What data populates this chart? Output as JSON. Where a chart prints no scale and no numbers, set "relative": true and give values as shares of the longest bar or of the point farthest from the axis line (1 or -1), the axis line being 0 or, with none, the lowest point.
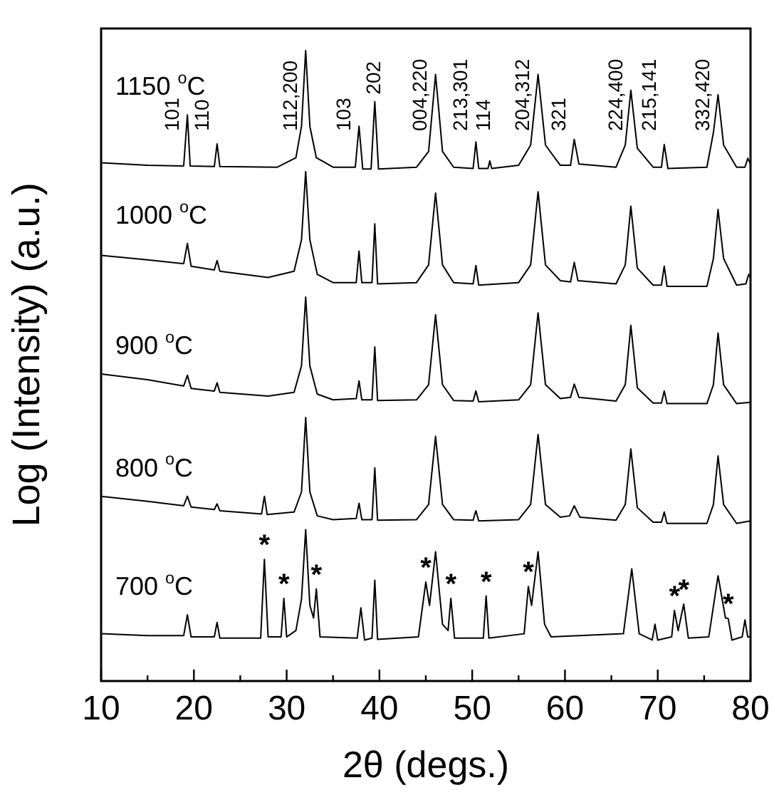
{
  "chart_data": {
    "type": "line",
    "relative": true,
    "xlabel": "2θ (degs.)",
    "ylabel": "Log (Intensity) (a.u.)",
    "xlim": [
      10,
      80
    ],
    "xticks": [
      10,
      {
        "value": 15,
        "label": null
      },
      20,
      {
        "value": 25,
        "label": null
      },
      30,
      {
        "value": 35,
        "label": null
      },
      40,
      {
        "value": 45,
        "label": null
      },
      50,
      {
        "value": 55,
        "label": null
      },
      60,
      {
        "value": 65,
        "label": null
      },
      70,
      {
        "value": 75,
        "label": null
      },
      80
    ],
    "grid": false,
    "legend": false,
    "marker": "none",
    "line_style": "solid",
    "series": [
      {
        "name": "1150 $^{o}$C",
        "color": "#000000",
        "x": [
          10,
          15,
          18.9,
          19.3,
          19.6,
          22.2,
          22.5,
          22.8,
          29,
          31,
          31.6,
          32.05,
          32.5,
          33.2,
          35,
          37.4,
          37.8,
          38.2,
          39.1,
          39.5,
          39.9,
          44,
          45.3,
          46.05,
          46.8,
          48,
          50.1,
          50.4,
          50.7,
          51.7,
          51.9,
          52.1,
          55,
          56.3,
          57.1,
          57.9,
          59.5,
          60.6,
          61.0,
          61.5,
          65.5,
          66.5,
          67.1,
          67.8,
          69.5,
          70.4,
          70.7,
          71.1,
          75.3,
          76.0,
          76.5,
          77.1,
          78.5,
          79.4,
          79.7,
          80
        ],
        "values": [
          0.822,
          0.818,
          0.817,
          0.898,
          0.817,
          0.816,
          0.852,
          0.816,
          0.815,
          0.83,
          0.88,
          1.0,
          0.88,
          0.83,
          0.815,
          0.815,
          0.88,
          0.812,
          0.812,
          0.919,
          0.812,
          0.815,
          0.84,
          0.962,
          0.84,
          0.815,
          0.813,
          0.855,
          0.813,
          0.813,
          0.825,
          0.813,
          0.818,
          0.85,
          0.962,
          0.85,
          0.818,
          0.818,
          0.859,
          0.82,
          0.815,
          0.85,
          0.937,
          0.845,
          0.815,
          0.815,
          0.851,
          0.813,
          0.815,
          0.87,
          0.93,
          0.85,
          0.815,
          0.815,
          0.829,
          0.82
        ]
      },
      {
        "name": "1000 $^{o}$C",
        "color": "#000000",
        "x": [
          10,
          15,
          18.9,
          19.3,
          19.7,
          22.2,
          22.5,
          22.8,
          28,
          30.8,
          31.6,
          32.05,
          32.5,
          33.3,
          35,
          37.5,
          37.8,
          38.1,
          39.2,
          39.5,
          39.8,
          44,
          45.3,
          46.05,
          46.8,
          48,
          50.1,
          50.4,
          50.7,
          55,
          56.3,
          57.1,
          57.9,
          59.5,
          60.6,
          61.0,
          61.4,
          65.5,
          66.5,
          67.1,
          67.8,
          69.5,
          70.4,
          70.7,
          71.0,
          75.3,
          76.0,
          76.5,
          77.1,
          78.5,
          79.5,
          79.8,
          80
        ],
        "values": [
          0.675,
          0.668,
          0.662,
          0.694,
          0.658,
          0.652,
          0.667,
          0.65,
          0.64,
          0.65,
          0.7,
          0.808,
          0.7,
          0.645,
          0.632,
          0.632,
          0.682,
          0.632,
          0.632,
          0.725,
          0.63,
          0.632,
          0.66,
          0.774,
          0.66,
          0.632,
          0.63,
          0.659,
          0.628,
          0.632,
          0.66,
          0.776,
          0.66,
          0.635,
          0.633,
          0.664,
          0.635,
          0.63,
          0.66,
          0.753,
          0.655,
          0.628,
          0.628,
          0.658,
          0.626,
          0.626,
          0.67,
          0.748,
          0.67,
          0.628,
          0.63,
          0.645,
          0.64
        ]
      },
      {
        "name": "900 $^{o}$C",
        "color": "#000000",
        "x": [
          10,
          15,
          18.9,
          19.3,
          19.7,
          22.2,
          22.5,
          22.8,
          28,
          30.8,
          31.6,
          32.05,
          32.5,
          33.3,
          35,
          37.5,
          37.8,
          38.1,
          39.2,
          39.5,
          39.8,
          44,
          45.3,
          46.05,
          46.8,
          48,
          50.1,
          50.4,
          50.7,
          55,
          56.3,
          57.1,
          57.9,
          59.5,
          60.6,
          61.0,
          61.5,
          65.5,
          66.5,
          67.1,
          67.8,
          69.5,
          70.4,
          70.7,
          71.0,
          75.3,
          76.0,
          76.5,
          77.1,
          78.5,
          80
        ],
        "values": [
          0.487,
          0.478,
          0.468,
          0.485,
          0.464,
          0.46,
          0.473,
          0.458,
          0.452,
          0.458,
          0.5,
          0.609,
          0.5,
          0.455,
          0.446,
          0.448,
          0.476,
          0.446,
          0.446,
          0.53,
          0.445,
          0.446,
          0.47,
          0.581,
          0.47,
          0.445,
          0.444,
          0.46,
          0.443,
          0.446,
          0.47,
          0.584,
          0.47,
          0.448,
          0.45,
          0.471,
          0.45,
          0.444,
          0.47,
          0.564,
          0.465,
          0.441,
          0.441,
          0.46,
          0.44,
          0.44,
          0.47,
          0.552,
          0.47,
          0.44,
          0.442
        ]
      },
      {
        "name": "800 $^{o}$C",
        "color": "#000000",
        "x": [
          10,
          15,
          18.9,
          19.3,
          19.7,
          22.2,
          22.5,
          22.8,
          27.3,
          27.6,
          27.9,
          30.8,
          31.6,
          32.05,
          32.5,
          33.3,
          35,
          37.5,
          37.8,
          38.1,
          39.2,
          39.5,
          39.8,
          44,
          45.3,
          46.05,
          46.8,
          48,
          50.1,
          50.4,
          50.7,
          55,
          56.3,
          57.1,
          57.9,
          59.5,
          60.5,
          61.0,
          61.6,
          65.5,
          66.5,
          67.1,
          67.8,
          69.5,
          70.4,
          70.7,
          71.0,
          75.3,
          76.0,
          76.5,
          77.1,
          78.5,
          80
        ],
        "values": [
          0.293,
          0.285,
          0.278,
          0.293,
          0.276,
          0.272,
          0.281,
          0.27,
          0.265,
          0.293,
          0.264,
          0.268,
          0.3,
          0.418,
          0.3,
          0.262,
          0.256,
          0.258,
          0.282,
          0.256,
          0.256,
          0.338,
          0.255,
          0.256,
          0.28,
          0.388,
          0.28,
          0.256,
          0.255,
          0.27,
          0.254,
          0.256,
          0.28,
          0.391,
          0.28,
          0.26,
          0.262,
          0.278,
          0.26,
          0.255,
          0.28,
          0.368,
          0.275,
          0.252,
          0.252,
          0.268,
          0.25,
          0.25,
          0.28,
          0.357,
          0.28,
          0.25,
          0.254
        ]
      },
      {
        "name": "700 $^{o}$C",
        "color": "#000000",
        "x": [
          10,
          15,
          18.9,
          19.3,
          19.7,
          22.2,
          22.5,
          22.8,
          27.2,
          27.6,
          28.0,
          29.4,
          29.7,
          30.0,
          31.0,
          31.6,
          32.05,
          32.5,
          32.9,
          33.2,
          33.6,
          37.6,
          38.0,
          38.4,
          39.2,
          39.5,
          39.8,
          44.2,
          45.0,
          45.4,
          46.05,
          46.8,
          47.4,
          47.7,
          48.1,
          51.2,
          51.5,
          51.8,
          55.6,
          56.05,
          56.4,
          57.1,
          57.8,
          58.5,
          66.3,
          67.2,
          68.0,
          69.4,
          69.7,
          70.0,
          71.5,
          71.8,
          72.2,
          72.8,
          73.3,
          75.5,
          76.5,
          77.3,
          77.6,
          78.0,
          79.1,
          79.4,
          79.7,
          80
        ],
        "values": [
          0.075,
          0.072,
          0.072,
          0.105,
          0.07,
          0.07,
          0.093,
          0.068,
          0.068,
          0.193,
          0.07,
          0.07,
          0.131,
          0.07,
          0.08,
          0.13,
          0.24,
          0.12,
          0.1,
          0.146,
          0.07,
          0.068,
          0.116,
          0.065,
          0.068,
          0.16,
          0.066,
          0.07,
          0.157,
          0.12,
          0.205,
          0.09,
          0.08,
          0.131,
          0.068,
          0.068,
          0.135,
          0.068,
          0.075,
          0.15,
          0.12,
          0.205,
          0.09,
          0.07,
          0.075,
          0.178,
          0.075,
          0.065,
          0.09,
          0.065,
          0.07,
          0.112,
          0.08,
          0.122,
          0.068,
          0.07,
          0.167,
          0.1,
          0.099,
          0.065,
          0.07,
          0.097,
          0.07,
          0.07
        ]
      }
    ],
    "annotations": [
      {
        "text": "101",
        "x": 19.3,
        "y": 0.898
      },
      {
        "text": "110",
        "x": 22.5,
        "y": 0.852
      },
      {
        "text": "112,200",
        "x": 32.05,
        "y": 1.0
      },
      {
        "text": "103",
        "x": 37.8,
        "y": 0.88
      },
      {
        "text": "202",
        "x": 39.5,
        "y": 0.919
      },
      {
        "text": "004,220",
        "x": 46.05,
        "y": 0.962
      },
      {
        "text": "213,301",
        "x": 50.4,
        "y": 0.855
      },
      {
        "text": "114",
        "x": 51.9,
        "y": 0.825
      },
      {
        "text": "204,312",
        "x": 57.1,
        "y": 0.962
      },
      {
        "text": "321",
        "x": 61.0,
        "y": 0.859
      },
      {
        "text": "224,400",
        "x": 67.1,
        "y": 0.937
      },
      {
        "text": "215,141",
        "x": 70.7,
        "y": 0.851
      },
      {
        "text": "332,420",
        "x": 76.5,
        "y": 0.93
      },
      {
        "text": "*",
        "x": 27.6,
        "y": 0.193
      },
      {
        "text": "*",
        "x": 29.7,
        "y": 0.131
      },
      {
        "text": "*",
        "x": 33.2,
        "y": 0.146
      },
      {
        "text": "*",
        "x": 45.0,
        "y": 0.157
      },
      {
        "text": "*",
        "x": 47.7,
        "y": 0.131
      },
      {
        "text": "*",
        "x": 51.5,
        "y": 0.135
      },
      {
        "text": "*",
        "x": 56.05,
        "y": 0.15
      },
      {
        "text": "*",
        "x": 71.8,
        "y": 0.112
      },
      {
        "text": "*",
        "x": 72.8,
        "y": 0.122
      },
      {
        "text": "*",
        "x": 77.6,
        "y": 0.099
      }
    ]
  }
}
